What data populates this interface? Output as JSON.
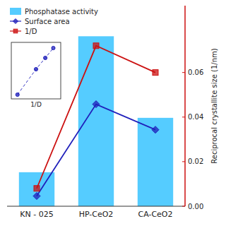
{
  "chart_data": [
    {
      "type": "bar",
      "categories": [
        "KN - 025",
        "HP-CeO2",
        "CA-CeO2"
      ],
      "series": [
        {
          "name": "Phosphatase activity",
          "type": "bar",
          "color": "#55CCFF",
          "values": [
            0.2,
            1.0,
            0.52
          ]
        },
        {
          "name": "Surface area",
          "type": "line",
          "color": "#2020BB",
          "marker": "diamond",
          "values": [
            0.06,
            0.6,
            0.45
          ]
        },
        {
          "name": "1/D",
          "type": "line",
          "axis": "y2",
          "color": "#CC1111",
          "marker": "square",
          "values": [
            0.008,
            0.072,
            0.06
          ]
        }
      ],
      "ylim": [
        0,
        1.18
      ],
      "y2lim": [
        0,
        0.09
      ],
      "y2ticks": [
        {
          "value": 0.0,
          "label": "0.00"
        },
        0.02,
        0.04,
        0.06
      ],
      "y2_label": "Reciprocal crystallite size (1/nm)",
      "legend": "upper left"
    },
    {
      "type": "line",
      "x": [
        0.01,
        0.04,
        0.055,
        0.068
      ],
      "series": [
        {
          "color": "#2020BB",
          "line_style": "dashed",
          "marker": "circle",
          "values": [
            0.06,
            0.42,
            0.58,
            0.72
          ]
        }
      ],
      "x_label": "1/D",
      "xlim": [
        0,
        0.08
      ],
      "ylim": [
        0,
        0.8
      ],
      "tick_labels": false
    }
  ]
}
